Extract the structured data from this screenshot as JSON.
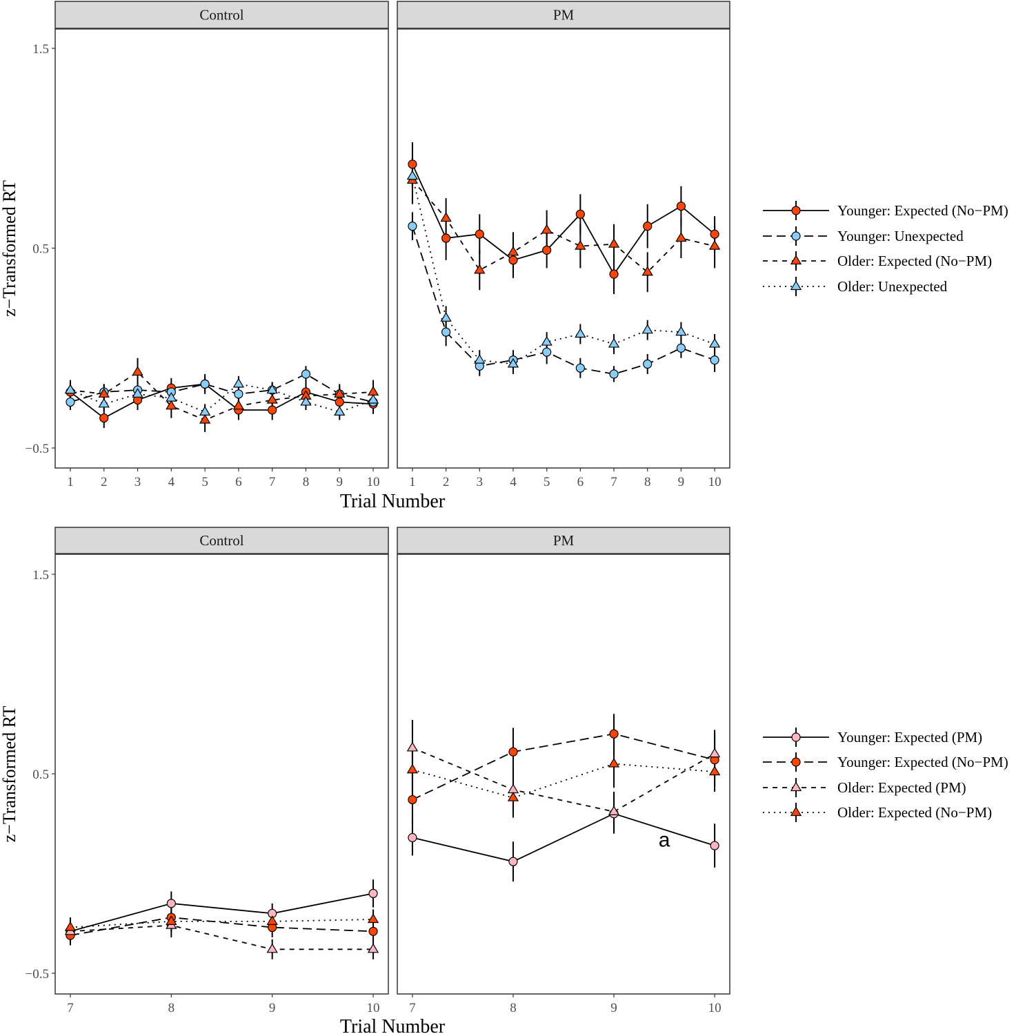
{
  "colors": {
    "red": "#FF4500",
    "blue": "#87CEFA",
    "pink": "#FFB6C1",
    "strip": "#D9D9D9"
  },
  "chart_data": [
    {
      "type": "line",
      "ylabel": "z−Transformed RT",
      "xlabel": "Trial Number",
      "ylim": [
        -0.6,
        1.6
      ],
      "yticks": [
        {
          "v": 1.5,
          "label": "1.5"
        },
        {
          "v": 0.5,
          "label": "0.5"
        },
        {
          "v": -0.5,
          "label": "−0.5"
        }
      ],
      "x": [
        1,
        2,
        3,
        4,
        5,
        6,
        7,
        8,
        9,
        10
      ],
      "xlim": [
        0.55,
        10.45
      ],
      "legend_position": "right",
      "legend": [
        {
          "label": "Younger: Expected (No−PM)",
          "shape": "circle",
          "color": "red",
          "linetype": "solid"
        },
        {
          "label": "Younger: Unexpected",
          "shape": "circle",
          "color": "blue",
          "linetype": "longdash"
        },
        {
          "label": "Older: Expected (No−PM)",
          "shape": "triangle",
          "color": "red",
          "linetype": "dashed"
        },
        {
          "label": "Older: Unexpected",
          "shape": "triangle",
          "color": "blue",
          "linetype": "dotted"
        }
      ],
      "panels": [
        {
          "strip": "Control",
          "series": [
            {
              "values": [
                -0.22,
                -0.35,
                -0.26,
                -0.2,
                -0.18,
                -0.31,
                -0.31,
                -0.22,
                -0.27,
                -0.28
              ],
              "se": [
                0.05,
                0.05,
                0.05,
                0.05,
                0.05,
                0.05,
                0.05,
                0.05,
                0.05,
                0.05
              ]
            },
            {
              "values": [
                -0.27,
                -0.22,
                -0.21,
                -0.22,
                -0.18,
                -0.23,
                -0.21,
                -0.13,
                -0.23,
                -0.27
              ],
              "se": [
                0.04,
                0.04,
                0.04,
                0.04,
                0.04,
                0.04,
                0.04,
                0.04,
                0.04,
                0.04
              ]
            },
            {
              "values": [
                -0.21,
                -0.23,
                -0.12,
                -0.29,
                -0.36,
                -0.29,
                -0.26,
                -0.24,
                -0.23,
                -0.22
              ],
              "se": [
                0.05,
                0.05,
                0.07,
                0.06,
                0.06,
                0.05,
                0.05,
                0.05,
                0.05,
                0.06
              ]
            },
            {
              "values": [
                -0.21,
                -0.28,
                -0.23,
                -0.25,
                -0.32,
                -0.18,
                -0.21,
                -0.27,
                -0.32,
                -0.26
              ],
              "se": [
                0.04,
                0.04,
                0.04,
                0.04,
                0.04,
                0.04,
                0.04,
                0.04,
                0.04,
                0.04
              ]
            }
          ]
        },
        {
          "strip": "PM",
          "series": [
            {
              "values": [
                0.92,
                0.55,
                0.57,
                0.44,
                0.49,
                0.67,
                0.37,
                0.61,
                0.71,
                0.57
              ],
              "se": [
                0.11,
                0.11,
                0.1,
                0.09,
                0.09,
                0.1,
                0.1,
                0.11,
                0.1,
                0.09
              ]
            },
            {
              "values": [
                0.61,
                0.08,
                -0.09,
                -0.06,
                -0.02,
                -0.1,
                -0.13,
                -0.08,
                0.0,
                -0.06
              ],
              "se": [
                0.07,
                0.07,
                0.05,
                0.05,
                0.06,
                0.05,
                0.04,
                0.05,
                0.05,
                0.06
              ]
            },
            {
              "values": [
                0.84,
                0.65,
                0.39,
                0.48,
                0.59,
                0.51,
                0.52,
                0.38,
                0.55,
                0.51
              ],
              "se": [
                0.12,
                0.1,
                0.1,
                0.1,
                0.1,
                0.11,
                0.1,
                0.1,
                0.1,
                0.11
              ]
            },
            {
              "values": [
                0.86,
                0.15,
                -0.06,
                -0.08,
                0.03,
                0.07,
                0.02,
                0.09,
                0.08,
                0.02
              ],
              "se": [
                0.06,
                0.06,
                0.05,
                0.05,
                0.05,
                0.05,
                0.05,
                0.05,
                0.05,
                0.05
              ]
            }
          ]
        }
      ]
    },
    {
      "type": "line",
      "ylabel": "z−Transformed RT",
      "xlabel": "Trial Number",
      "ylim": [
        -0.6,
        1.6
      ],
      "yticks": [
        {
          "v": 1.5,
          "label": "1.5"
        },
        {
          "v": 0.5,
          "label": "0.5"
        },
        {
          "v": -0.5,
          "label": "−0.5"
        }
      ],
      "x": [
        7,
        8,
        9,
        10
      ],
      "xlim": [
        6.85,
        10.15
      ],
      "legend_position": "right",
      "legend": [
        {
          "label": "Younger: Expected (PM)",
          "shape": "circle",
          "color": "pink",
          "linetype": "solid"
        },
        {
          "label": "Younger: Expected (No−PM)",
          "shape": "circle",
          "color": "red",
          "linetype": "longdash"
        },
        {
          "label": "Older: Expected (PM)",
          "shape": "triangle",
          "color": "pink",
          "linetype": "dashed"
        },
        {
          "label": "Older: Expected (No−PM)",
          "shape": "triangle",
          "color": "red",
          "linetype": "dotted"
        }
      ],
      "annotations": [
        {
          "panel": "PM",
          "x": 9.5,
          "y": 0.17,
          "text": "a"
        }
      ],
      "panels": [
        {
          "strip": "Control",
          "series": [
            {
              "values": [
                -0.29,
                -0.15,
                -0.2,
                -0.1
              ],
              "se": [
                0.05,
                0.06,
                0.05,
                0.07
              ]
            },
            {
              "values": [
                -0.31,
                -0.22,
                -0.27,
                -0.29
              ],
              "se": [
                0.05,
                0.05,
                0.05,
                0.05
              ]
            },
            {
              "values": [
                -0.29,
                -0.26,
                -0.38,
                -0.38
              ],
              "se": [
                0.05,
                0.06,
                0.05,
                0.05
              ]
            },
            {
              "values": [
                -0.27,
                -0.24,
                -0.24,
                -0.23
              ],
              "se": [
                0.05,
                0.05,
                0.05,
                0.05
              ]
            }
          ]
        },
        {
          "strip": "PM",
          "series": [
            {
              "values": [
                0.18,
                0.06,
                0.3,
                0.14
              ],
              "se": [
                0.09,
                0.1,
                0.1,
                0.11
              ]
            },
            {
              "values": [
                0.37,
                0.61,
                0.7,
                0.57
              ],
              "se": [
                0.12,
                0.12,
                0.1,
                0.13
              ]
            },
            {
              "values": [
                0.63,
                0.42,
                0.31,
                0.6
              ],
              "se": [
                0.14,
                0.1,
                0.1,
                0.12
              ]
            },
            {
              "values": [
                0.52,
                0.38,
                0.55,
                0.51
              ],
              "se": [
                0.12,
                0.1,
                0.12,
                0.1
              ]
            }
          ]
        }
      ]
    }
  ]
}
